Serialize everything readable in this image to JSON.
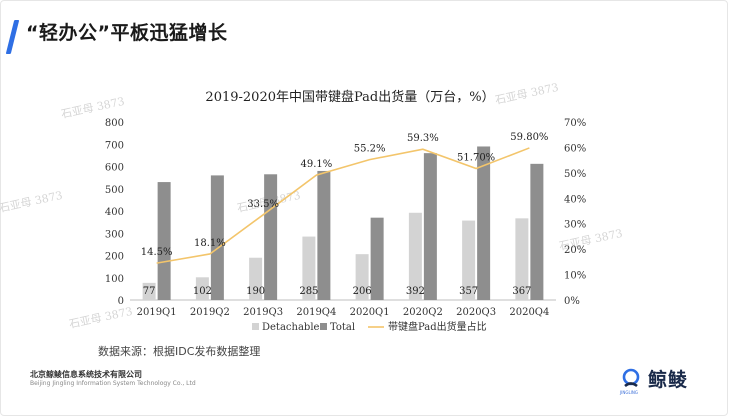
{
  "slide": {
    "title": "“轻办公”平板迅猛增长",
    "source": "数据来源：根据IDC发布数据整理",
    "company_cn": "北京鲸鲮信息系统技术有限公司",
    "company_en": "Beijing Jingling Information System Technology Co., Ltd",
    "brand": "鲸鲮",
    "brand_sub": "JINGLING",
    "watermark": "石亚母 3873"
  },
  "colors": {
    "accent": "#2f6fe4",
    "detachable": "#d3d3d3",
    "total": "#8e8e8e",
    "share_line": "#f3c56b"
  },
  "chart_data": {
    "type": "bar",
    "title": "2019-2020年中国带键盘Pad出货量（万台，%）",
    "categories": [
      "2019Q1",
      "2019Q2",
      "2019Q3",
      "2019Q4",
      "2020Q1",
      "2020Q2",
      "2020Q3",
      "2020Q4"
    ],
    "series": [
      {
        "name": "Detachable",
        "kind": "bar",
        "values": [
          77,
          102,
          190,
          285,
          206,
          392,
          357,
          367
        ],
        "labels": [
          "77",
          "102",
          "190",
          "285",
          "206",
          "392",
          "357",
          "367"
        ]
      },
      {
        "name": "Total",
        "kind": "bar",
        "values": [
          530,
          560,
          565,
          580,
          370,
          660,
          690,
          612
        ]
      },
      {
        "name": "带键盘Pad出货量占比",
        "kind": "line",
        "axis": "right",
        "values": [
          14.5,
          18.1,
          33.5,
          49.1,
          55.2,
          59.3,
          51.7,
          59.8
        ],
        "labels": [
          "14.5%",
          "18.1%",
          "33.5%",
          "49.1%",
          "55.2%",
          "59.3%",
          "51.70%",
          "59.80%"
        ]
      }
    ],
    "y_left": {
      "min": 0,
      "max": 800,
      "ticks": [
        "0",
        "100",
        "200",
        "300",
        "400",
        "500",
        "600",
        "700",
        "800"
      ]
    },
    "y_right": {
      "min": 0,
      "max": 70,
      "ticks": [
        "0%",
        "10%",
        "20%",
        "30%",
        "40%",
        "50%",
        "60%",
        "70%"
      ]
    },
    "grid": false,
    "legend": "bottom"
  }
}
